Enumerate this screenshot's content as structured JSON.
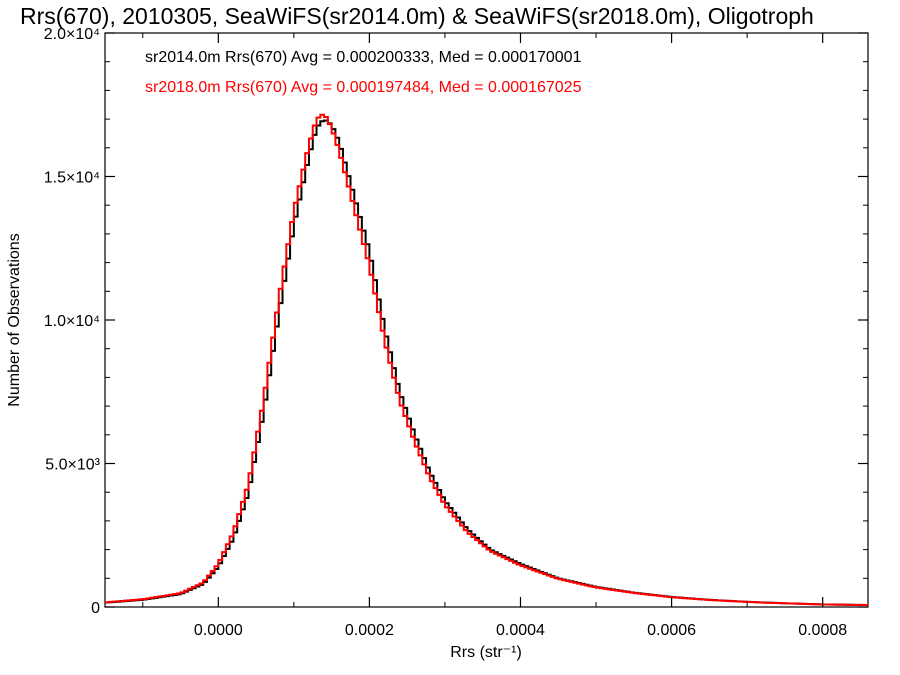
{
  "chart_data": {
    "type": "line",
    "title": "Rrs(670), 2010305, SeaWiFS(sr2014.0m) & SeaWiFS(sr2018.0m), Oligotroph",
    "xlabel": "Rrs (str⁻¹)",
    "ylabel": "Number of Observations",
    "xlim": [
      -0.00015,
      0.00086
    ],
    "ylim": [
      0,
      20000
    ],
    "x_ticks": [
      {
        "value": 0.0,
        "label": "0.0000"
      },
      {
        "value": 0.0002,
        "label": "0.0002"
      },
      {
        "value": 0.0004,
        "label": "0.0004"
      },
      {
        "value": 0.0006,
        "label": "0.0006"
      },
      {
        "value": 0.0008,
        "label": "0.0008"
      }
    ],
    "y_ticks": [
      {
        "value": 0,
        "label": "0"
      },
      {
        "value": 5000,
        "label": "5.0×10³"
      },
      {
        "value": 10000,
        "label": "1.0×10⁴"
      },
      {
        "value": 15000,
        "label": "1.5×10⁴"
      },
      {
        "value": 20000,
        "label": "2.0×10⁴"
      }
    ],
    "annotations": [
      {
        "text": "sr2014.0m Rrs(670) Avg = 0.000200333, Med = 0.000170001",
        "color": "#000000"
      },
      {
        "text": "sr2018.0m Rrs(670) Avg = 0.000197484, Med = 0.000167025",
        "color": "#ff0000"
      }
    ],
    "style": "step-histogram",
    "grid": false,
    "series": [
      {
        "color": "#000000",
        "x": [
          -0.00015,
          -0.0001,
          -5e-05,
          -2e-05,
          0.0,
          2e-05,
          4e-05,
          6e-05,
          8e-05,
          0.0001,
          0.00012,
          0.00013,
          0.00014,
          0.00015,
          0.00016,
          0.00018,
          0.0002,
          0.00022,
          0.00024,
          0.00026,
          0.00028,
          0.0003,
          0.00033,
          0.00036,
          0.0004,
          0.00045,
          0.0005,
          0.00055,
          0.0006,
          0.00065,
          0.0007,
          0.00075,
          0.0008,
          0.00086
        ],
        "values": [
          150,
          250,
          450,
          800,
          1400,
          2400,
          4000,
          6800,
          10200,
          13300,
          15700,
          16700,
          17000,
          16800,
          16200,
          14300,
          12400,
          9700,
          7500,
          6000,
          4700,
          3700,
          2700,
          2000,
          1500,
          1000,
          700,
          500,
          350,
          250,
          180,
          130,
          90,
          70
        ]
      },
      {
        "color": "#ff0000",
        "x": [
          -0.00015,
          -0.0001,
          -5e-05,
          -2e-05,
          0.0,
          2e-05,
          4e-05,
          6e-05,
          8e-05,
          0.0001,
          0.00012,
          0.00013,
          0.00014,
          0.00015,
          0.00016,
          0.00018,
          0.0002,
          0.00022,
          0.00024,
          0.00026,
          0.00028,
          0.0003,
          0.00033,
          0.00036,
          0.0004,
          0.00045,
          0.0005,
          0.00055,
          0.0006,
          0.00065,
          0.0007,
          0.00075,
          0.0008,
          0.00086
        ],
        "values": [
          160,
          270,
          480,
          850,
          1500,
          2600,
          4300,
          7200,
          10700,
          13800,
          16100,
          17000,
          17200,
          16700,
          15900,
          13900,
          11900,
          9300,
          7200,
          5750,
          4500,
          3550,
          2600,
          1950,
          1450,
          980,
          680,
          490,
          340,
          245,
          175,
          128,
          88,
          68
        ]
      }
    ]
  }
}
